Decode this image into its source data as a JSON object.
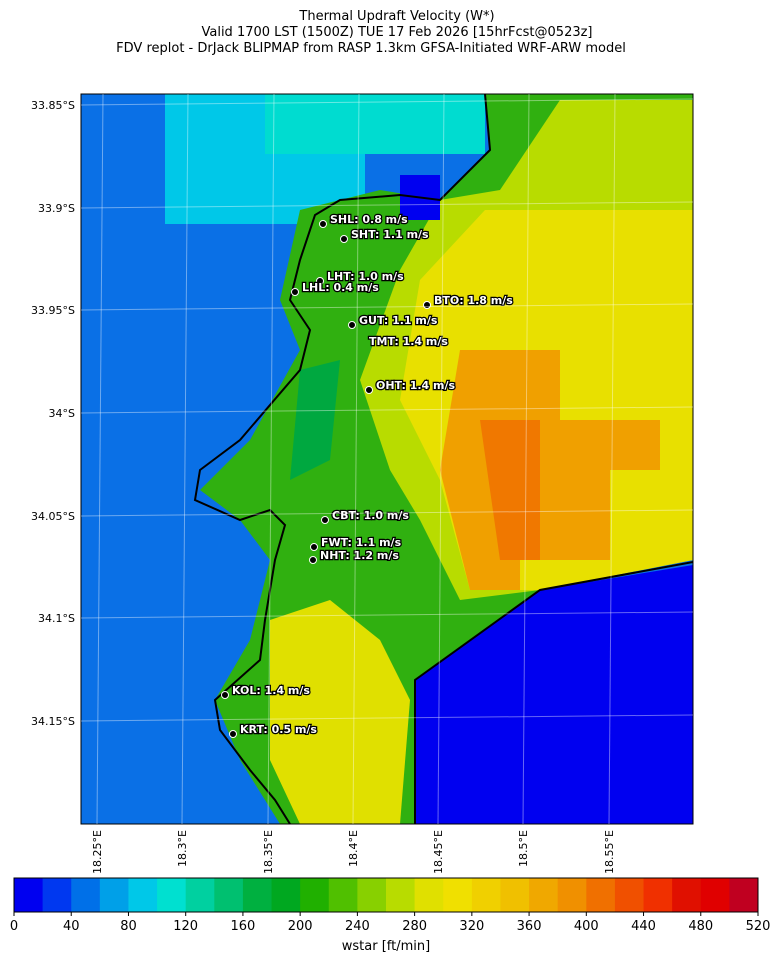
{
  "title": "Thermal Updraft Velocity (W*)",
  "subtitle": "Valid 1700 LST (1500Z) TUE 17 Feb 2026 [15hrFcst@0523z]",
  "source": "FDV replot - DrJack BLIPMAP from RASP 1.3km GFSA-Initiated WRF-ARW model",
  "lat_labels": [
    "33.85°S",
    "33.9°S",
    "33.95°S",
    "34°S",
    "34.05°S",
    "34.1°S",
    "34.15°S"
  ],
  "lon_labels": [
    "18.25°E",
    "18.3°E",
    "18.35°E",
    "18.4°E",
    "18.45°E",
    "18.5°E",
    "18.55°E"
  ],
  "stations": [
    "SHL: 0.8 m/s",
    "SHT: 1.1 m/s",
    "LHT: 1.0 m/s",
    "LHL: 0.4 m/s",
    "BTO: 1.8 m/s",
    "GUT: 1.1 m/s",
    "TMT: 1.4 m/s",
    "OHT: 1.4 m/s",
    "CBT: 1.0 m/s",
    "FWT: 1.1 m/s",
    "NHT: 1.2 m/s",
    "KOL: 1.4 m/s",
    "KRT: 0.5 m/s"
  ],
  "colorbar": {
    "label": "wstar [ft/min]",
    "lim": [
      0,
      520
    ],
    "ticks": [
      0,
      40,
      80,
      120,
      160,
      200,
      240,
      280,
      320,
      360,
      400,
      440,
      480,
      520
    ],
    "colors": [
      "#0000f0",
      "#0038f0",
      "#0070e8",
      "#00a0e8",
      "#00c8e8",
      "#00e0d0",
      "#00d0a0",
      "#00c070",
      "#00b040",
      "#00a820",
      "#20b000",
      "#50c000",
      "#88d000",
      "#b8dc00",
      "#e0e000",
      "#f0e000",
      "#f0d000",
      "#f0c000",
      "#f0a800",
      "#f09000",
      "#f07000",
      "#f05000",
      "#f03000",
      "#e01000",
      "#e00000",
      "#c00020"
    ]
  }
}
